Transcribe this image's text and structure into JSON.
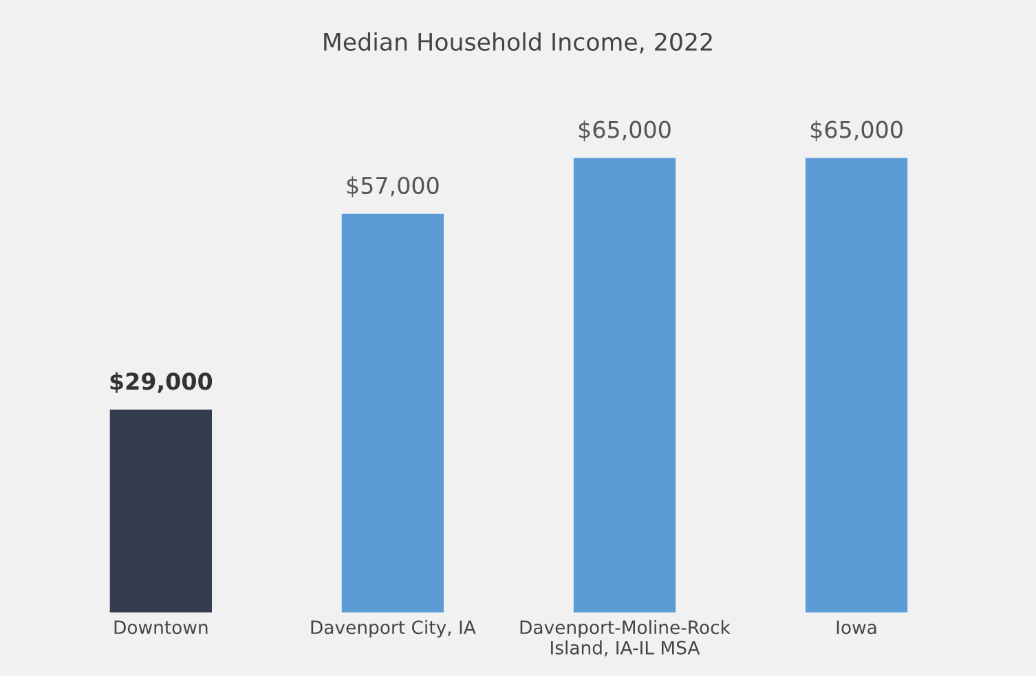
{
  "chart_data": {
    "type": "bar",
    "title": "Median Household Income, 2022",
    "categories": [
      "Downtown",
      "Davenport City, IA",
      "Davenport-Moline-Rock\nIsland, IA-IL MSA",
      "Iowa"
    ],
    "values": [
      29000,
      57000,
      65000,
      65000
    ],
    "colors": [
      "#333d4f",
      "#5b9bd6",
      "#5b9bd6",
      "#5b9bd6"
    ],
    "value_labels": [
      "$29,000",
      "$57,000",
      "$65,000",
      "$65,000"
    ],
    "grid": false,
    "legend": false
  }
}
